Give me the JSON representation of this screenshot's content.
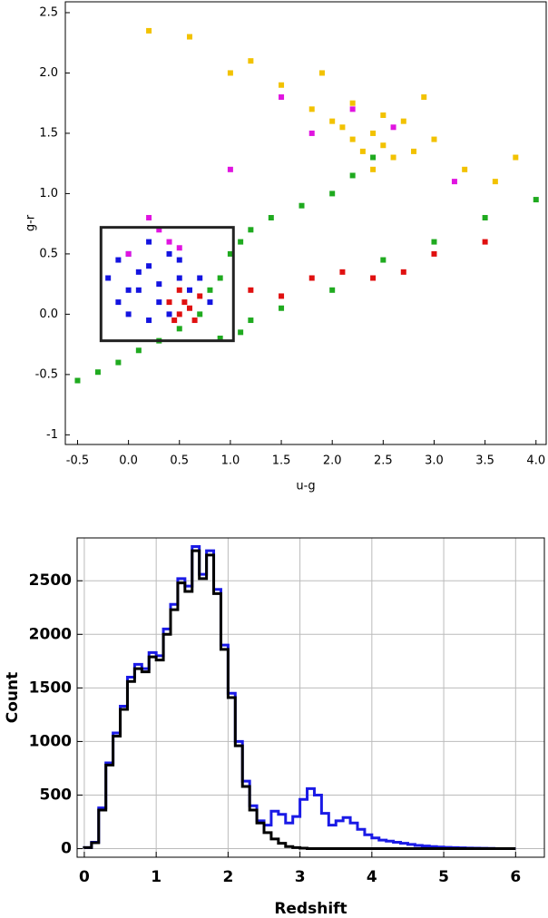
{
  "chart_data": [
    {
      "type": "scatter",
      "xlabel": "u-g",
      "ylabel": "g-r",
      "xlim": [
        -0.62,
        4.1
      ],
      "ylim": [
        -1.08,
        2.59
      ],
      "xticks": [
        -0.5,
        {
          "value": 0,
          "label": "0.0"
        },
        0.5,
        {
          "value": 1,
          "label": "1.0"
        },
        1.5,
        {
          "value": 2,
          "label": "2.0"
        },
        2.5,
        {
          "value": 3,
          "label": "3.0"
        },
        3.5,
        {
          "value": 4,
          "label": "4.0"
        }
      ],
      "yticks": [
        -1.0,
        -0.5,
        {
          "value": 0,
          "label": "0.0"
        },
        0.5,
        {
          "value": 1,
          "label": "1.0"
        },
        1.5,
        {
          "value": 2,
          "label": "2.0"
        },
        2.5
      ],
      "box": {
        "x": [
          -0.27,
          1.03
        ],
        "y": [
          -0.22,
          0.72
        ]
      },
      "series": [
        {
          "color": "#f2c200",
          "x": [
            2.2,
            2.4,
            2.3,
            2.5,
            2.1,
            2.6,
            2.0,
            2.8,
            1.8,
            3.0,
            2.4,
            2.2,
            1.5,
            3.3,
            1.2,
            0.6,
            0.2,
            3.6,
            2.7,
            1.9,
            2.5,
            1.0,
            3.8,
            2.9
          ],
          "values": [
            1.45,
            1.5,
            1.35,
            1.4,
            1.55,
            1.3,
            1.6,
            1.35,
            1.7,
            1.45,
            1.2,
            1.75,
            1.9,
            1.2,
            2.1,
            2.3,
            2.35,
            1.1,
            1.6,
            2.0,
            1.65,
            2.0,
            1.3,
            1.8
          ]
        },
        {
          "color": "#1faa1f",
          "x": [
            -0.5,
            -0.3,
            -0.1,
            0.1,
            0.3,
            0.5,
            0.7,
            0.9,
            1.0,
            1.1,
            1.2,
            1.4,
            1.7,
            2.0,
            2.2,
            2.4,
            0.8,
            1.1,
            1.5,
            2.0,
            2.5,
            3.0,
            3.5,
            4.0,
            0.9,
            1.2
          ],
          "values": [
            -0.55,
            -0.48,
            -0.4,
            -0.3,
            -0.22,
            -0.12,
            0.0,
            0.3,
            0.5,
            0.6,
            0.7,
            0.8,
            0.9,
            1.0,
            1.15,
            1.3,
            0.2,
            -0.15,
            0.05,
            0.2,
            0.45,
            0.6,
            0.8,
            0.95,
            -0.2,
            -0.05
          ]
        },
        {
          "color": "#1414e0",
          "x": [
            -0.2,
            -0.1,
            0.0,
            0.1,
            0.2,
            0.3,
            0.4,
            0.5,
            0.6,
            0.0,
            0.2,
            0.4,
            -0.1,
            0.1,
            0.3,
            0.5,
            0.7,
            0.8,
            0.2,
            0.0
          ],
          "values": [
            0.3,
            0.1,
            0.5,
            0.2,
            0.4,
            0.1,
            0.5,
            0.3,
            0.2,
            0.0,
            0.6,
            0.0,
            0.45,
            0.35,
            0.25,
            0.45,
            0.3,
            0.1,
            -0.05,
            0.2
          ]
        },
        {
          "color": "#e01010",
          "x": [
            0.4,
            0.5,
            0.6,
            0.7,
            0.5,
            0.45,
            0.65,
            0.55,
            1.2,
            1.5,
            1.8,
            2.1,
            2.4,
            2.7,
            3.0,
            3.5
          ],
          "values": [
            0.1,
            0.0,
            0.05,
            0.15,
            0.2,
            -0.05,
            -0.05,
            0.1,
            0.2,
            0.15,
            0.3,
            0.35,
            0.3,
            0.35,
            0.5,
            0.6
          ]
        },
        {
          "color": "#e014e0",
          "x": [
            0.3,
            0.5,
            0.2,
            1.8,
            2.2,
            2.6,
            1.0,
            0.0,
            3.2,
            1.5,
            0.4
          ],
          "values": [
            0.7,
            0.55,
            0.8,
            1.5,
            1.7,
            1.55,
            1.2,
            0.5,
            1.1,
            1.8,
            0.6
          ]
        }
      ]
    },
    {
      "type": "histogram",
      "xlabel": "Redshift",
      "ylabel": "Count",
      "xlim": [
        -0.1,
        6.4
      ],
      "ylim": [
        -80,
        2900
      ],
      "grid": true,
      "xticks": [
        0,
        1,
        2,
        3,
        4,
        5,
        6
      ],
      "yticks": [
        0,
        500,
        1000,
        1500,
        2000,
        2500
      ],
      "bins": [
        0,
        0.1,
        0.2,
        0.3,
        0.4,
        0.5,
        0.6,
        0.7,
        0.8,
        0.9,
        1.0,
        1.1,
        1.2,
        1.3,
        1.4,
        1.5,
        1.6,
        1.7,
        1.8,
        1.9,
        2.0,
        2.1,
        2.2,
        2.3,
        2.4,
        2.5,
        2.6,
        2.7,
        2.8,
        2.9,
        3.0,
        3.1,
        3.2,
        3.3,
        3.4,
        3.5,
        3.6,
        3.7,
        3.8,
        3.9,
        4.0,
        4.1,
        4.2,
        4.3,
        4.4,
        4.5,
        4.6,
        4.7,
        4.8,
        4.9,
        5.0,
        5.1,
        5.2,
        5.3,
        5.4,
        5.5,
        5.6,
        5.7,
        5.8,
        5.9,
        6.0
      ],
      "series": [
        {
          "color": "#1a1ae6",
          "values": [
            10,
            60,
            380,
            800,
            1080,
            1330,
            1600,
            1720,
            1680,
            1830,
            1800,
            2050,
            2280,
            2520,
            2450,
            2820,
            2560,
            2780,
            2420,
            1900,
            1450,
            1000,
            630,
            400,
            260,
            220,
            350,
            320,
            240,
            300,
            460,
            560,
            500,
            330,
            220,
            260,
            290,
            240,
            180,
            130,
            100,
            80,
            70,
            60,
            50,
            40,
            30,
            25,
            20,
            15,
            12,
            10,
            8,
            6,
            5,
            4,
            3,
            0,
            0,
            0
          ]
        },
        {
          "color": "#000000",
          "values": [
            10,
            55,
            360,
            780,
            1050,
            1300,
            1560,
            1680,
            1650,
            1790,
            1760,
            2000,
            2230,
            2480,
            2400,
            2780,
            2520,
            2740,
            2380,
            1860,
            1410,
            960,
            580,
            360,
            240,
            150,
            90,
            50,
            20,
            10,
            5,
            0,
            0,
            0,
            0,
            0,
            0,
            0,
            0,
            0,
            0,
            0,
            0,
            0,
            0,
            0,
            0,
            0,
            0,
            0,
            0,
            0,
            0,
            0,
            0,
            0,
            0,
            0,
            0,
            0
          ]
        }
      ]
    }
  ]
}
